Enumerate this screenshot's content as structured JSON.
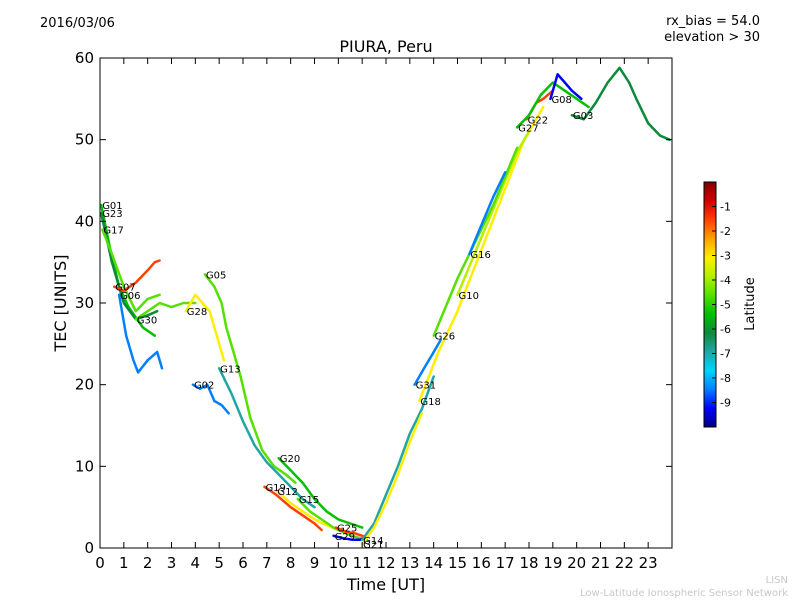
{
  "header": {
    "date": "2016/03/06",
    "bias_line1": "rx_bias = 54.0",
    "bias_line2": "elevation > 30"
  },
  "footer": {
    "line1": "LISN",
    "line2": "Low-Latitude Ionospheric Sensor Network"
  },
  "colors": {
    "scale": [
      "#00007f",
      "#0000ff",
      "#0080ff",
      "#00d4ff",
      "#21a6a3",
      "#0a8a3a",
      "#00c000",
      "#55e000",
      "#b5f000",
      "#ffee00",
      "#ffa000",
      "#ff4000",
      "#d00000",
      "#7f0000"
    ]
  },
  "chart_data": {
    "type": "scatter",
    "title": "PIURA, Peru",
    "xlabel": "Time [UT]",
    "ylabel": "TEC [UNITS]",
    "xlim": [
      0,
      24
    ],
    "ylim": [
      0,
      60
    ],
    "x_ticks": [
      0,
      1,
      2,
      3,
      4,
      5,
      6,
      7,
      8,
      9,
      10,
      11,
      12,
      13,
      14,
      15,
      16,
      17,
      18,
      19,
      20,
      21,
      22,
      23
    ],
    "y_ticks": [
      0,
      10,
      20,
      30,
      40,
      50,
      60
    ],
    "grid": false,
    "colorbar": {
      "label": "Latitude",
      "range": [
        -10,
        0
      ],
      "ticks": [
        -9,
        -8,
        -7,
        -6,
        -5,
        -4,
        -3,
        -2,
        -1
      ]
    },
    "series": [
      {
        "name": "G01",
        "latitude": -5.5,
        "points": [
          [
            0.05,
            42
          ],
          [
            0.4,
            37
          ],
          [
            0.8,
            32
          ],
          [
            1.2,
            29.5
          ],
          [
            1.8,
            27
          ],
          [
            2.3,
            26
          ]
        ]
      },
      {
        "name": "G23",
        "latitude": -6.2,
        "points": [
          [
            0.05,
            41
          ],
          [
            0.5,
            35
          ],
          [
            1.0,
            30
          ],
          [
            1.5,
            28
          ],
          [
            2.0,
            28.5
          ],
          [
            2.4,
            29
          ]
        ]
      },
      {
        "name": "G17",
        "latitude": -5.0,
        "points": [
          [
            0.1,
            39
          ],
          [
            0.5,
            36
          ],
          [
            1.0,
            32
          ],
          [
            1.5,
            29
          ],
          [
            2.0,
            30.5
          ],
          [
            2.5,
            31
          ]
        ]
      },
      {
        "name": "G07",
        "latitude": -2.0,
        "points": [
          [
            0.6,
            32
          ],
          [
            1.0,
            31.5
          ],
          [
            1.5,
            32.5
          ],
          [
            2.0,
            34
          ],
          [
            2.3,
            35
          ],
          [
            2.5,
            35.2
          ]
        ]
      },
      {
        "name": "G30",
        "latitude": -4.5,
        "points": [
          [
            1.5,
            28
          ],
          [
            2.0,
            29
          ],
          [
            2.5,
            30
          ],
          [
            3.0,
            29.5
          ],
          [
            3.5,
            30
          ],
          [
            4.0,
            30
          ]
        ]
      },
      {
        "name": "G06",
        "latitude": -8.2,
        "points": [
          [
            0.8,
            31
          ],
          [
            1.1,
            26
          ],
          [
            1.4,
            23
          ],
          [
            1.6,
            21.5
          ],
          [
            2.0,
            23
          ],
          [
            2.4,
            24
          ],
          [
            2.6,
            22
          ]
        ]
      },
      {
        "name": "G28",
        "latitude": -3.5,
        "points": [
          [
            3.6,
            29
          ],
          [
            4.0,
            31
          ],
          [
            4.3,
            30
          ],
          [
            4.6,
            29
          ],
          [
            4.9,
            26
          ],
          [
            5.2,
            23
          ]
        ]
      },
      {
        "name": "G02",
        "latitude": -8.5,
        "points": [
          [
            3.9,
            20
          ],
          [
            4.2,
            19.5
          ],
          [
            4.5,
            20
          ],
          [
            4.8,
            18
          ],
          [
            5.1,
            17.5
          ],
          [
            5.4,
            16.5
          ]
        ]
      },
      {
        "name": "G05",
        "latitude": -5.0,
        "points": [
          [
            4.4,
            33.5
          ],
          [
            4.8,
            32
          ],
          [
            5.1,
            30
          ],
          [
            5.3,
            27
          ],
          [
            5.6,
            24
          ],
          [
            5.9,
            21
          ],
          [
            6.3,
            16
          ],
          [
            6.8,
            12
          ],
          [
            7.3,
            10
          ],
          [
            7.8,
            9
          ],
          [
            8.2,
            8
          ]
        ]
      },
      {
        "name": "G13",
        "latitude": -6.5,
        "points": [
          [
            5.0,
            22
          ],
          [
            5.5,
            19
          ],
          [
            6.0,
            15.5
          ],
          [
            6.5,
            12.5
          ],
          [
            7.0,
            10.5
          ],
          [
            7.5,
            9
          ],
          [
            8.0,
            7.5
          ],
          [
            8.5,
            6
          ],
          [
            9.0,
            5
          ]
        ]
      },
      {
        "name": "G20",
        "latitude": -5.5,
        "points": [
          [
            7.5,
            11
          ],
          [
            8.0,
            9.5
          ],
          [
            8.5,
            8
          ],
          [
            9.0,
            6
          ],
          [
            9.5,
            4.5
          ],
          [
            10.0,
            3.5
          ],
          [
            10.5,
            3
          ],
          [
            11.0,
            2.5
          ]
        ]
      },
      {
        "name": "G19",
        "latitude": -1.5,
        "points": [
          [
            6.9,
            7.5
          ],
          [
            7.4,
            6.5
          ],
          [
            8.0,
            5
          ],
          [
            8.5,
            4
          ],
          [
            9.0,
            3
          ],
          [
            9.3,
            2.2
          ]
        ]
      },
      {
        "name": "G12",
        "latitude": -3.0,
        "points": [
          [
            7.4,
            7
          ],
          [
            8.0,
            5.5
          ],
          [
            8.5,
            4.5
          ],
          [
            9.0,
            3.5
          ],
          [
            9.5,
            2.8
          ],
          [
            10.0,
            2.2
          ],
          [
            10.5,
            1.8
          ]
        ]
      },
      {
        "name": "G15",
        "latitude": -4.5,
        "points": [
          [
            8.3,
            6
          ],
          [
            8.8,
            4.5
          ],
          [
            9.3,
            3.5
          ],
          [
            9.8,
            2.5
          ],
          [
            10.3,
            1.8
          ],
          [
            10.8,
            1.3
          ],
          [
            11.2,
            1.0
          ]
        ]
      },
      {
        "name": "G25",
        "latitude": -1.5,
        "points": [
          [
            9.9,
            2.5
          ],
          [
            10.3,
            2
          ],
          [
            10.7,
            1.8
          ],
          [
            11.0,
            1.5
          ],
          [
            11.2,
            1.3
          ]
        ]
      },
      {
        "name": "G29",
        "latitude": -9.0,
        "points": [
          [
            9.8,
            1.5
          ],
          [
            10.2,
            1.2
          ],
          [
            10.6,
            1
          ],
          [
            10.9,
            1.0
          ],
          [
            11.1,
            1.2
          ]
        ]
      },
      {
        "name": "G14",
        "latitude": -6.5,
        "points": [
          [
            11.0,
            1.0
          ],
          [
            11.5,
            3
          ],
          [
            12.0,
            6.5
          ],
          [
            12.5,
            10
          ],
          [
            13.0,
            14
          ],
          [
            13.5,
            17
          ],
          [
            14.0,
            21
          ]
        ]
      },
      {
        "name": "G21",
        "latitude": -3.0,
        "points": [
          [
            11.0,
            0.5
          ],
          [
            11.5,
            2.5
          ],
          [
            12.0,
            5.5
          ],
          [
            12.5,
            9
          ],
          [
            13.0,
            13
          ],
          [
            13.5,
            16.5
          ]
        ]
      },
      {
        "name": "G18",
        "latitude": -3.5,
        "points": [
          [
            13.4,
            18
          ],
          [
            13.8,
            21
          ],
          [
            14.2,
            24
          ],
          [
            14.6,
            26.5
          ],
          [
            15.0,
            29
          ],
          [
            15.4,
            32
          ],
          [
            15.8,
            35
          ],
          [
            16.2,
            38
          ],
          [
            16.6,
            41
          ],
          [
            17.0,
            44
          ],
          [
            17.4,
            47
          ],
          [
            17.8,
            50
          ],
          [
            18.2,
            52
          ],
          [
            18.6,
            54
          ]
        ]
      },
      {
        "name": "G31",
        "latitude": -8.5,
        "points": [
          [
            13.2,
            20
          ],
          [
            13.6,
            22
          ],
          [
            14.0,
            24
          ],
          [
            14.3,
            25.5
          ]
        ]
      },
      {
        "name": "G10",
        "latitude": -4.0,
        "points": [
          [
            15.0,
            31
          ],
          [
            15.5,
            34.5
          ],
          [
            16.0,
            38
          ],
          [
            16.5,
            41.5
          ],
          [
            17.0,
            45
          ],
          [
            17.5,
            48.5
          ],
          [
            18.0,
            51
          ]
        ]
      },
      {
        "name": "G26",
        "latitude": -5.0,
        "points": [
          [
            14.0,
            26
          ],
          [
            14.5,
            29.5
          ],
          [
            15.0,
            33
          ],
          [
            15.5,
            36
          ],
          [
            16.0,
            39
          ],
          [
            16.5,
            42
          ],
          [
            17.0,
            45.5
          ],
          [
            17.5,
            49
          ]
        ]
      },
      {
        "name": "G16",
        "latitude": -8.0,
        "points": [
          [
            15.5,
            36
          ],
          [
            16.0,
            39.5
          ],
          [
            16.5,
            43
          ],
          [
            17.0,
            46
          ]
        ]
      },
      {
        "name": "G22",
        "latitude": -2.0,
        "points": [
          [
            17.9,
            52.5
          ],
          [
            18.3,
            54.5
          ],
          [
            18.6,
            55
          ],
          [
            19.0,
            56
          ]
        ]
      },
      {
        "name": "G27",
        "latitude": -5.5,
        "points": [
          [
            17.5,
            51.5
          ],
          [
            18.0,
            53
          ],
          [
            18.5,
            55.5
          ],
          [
            19.0,
            57
          ],
          [
            19.5,
            56
          ],
          [
            20.0,
            55
          ],
          [
            20.5,
            54
          ]
        ]
      },
      {
        "name": "G08",
        "latitude": -9.2,
        "points": [
          [
            18.9,
            55
          ],
          [
            19.2,
            58
          ],
          [
            19.5,
            57
          ],
          [
            19.8,
            56
          ],
          [
            20.2,
            55
          ]
        ]
      },
      {
        "name": "G03",
        "latitude": -6.0,
        "points": [
          [
            19.8,
            53
          ],
          [
            20.3,
            52.5
          ],
          [
            20.8,
            54.5
          ],
          [
            21.3,
            57
          ],
          [
            21.8,
            58.8
          ],
          [
            22.2,
            57
          ],
          [
            22.5,
            55
          ],
          [
            23.0,
            52
          ],
          [
            23.5,
            50.5
          ],
          [
            23.9,
            50
          ]
        ]
      }
    ]
  }
}
